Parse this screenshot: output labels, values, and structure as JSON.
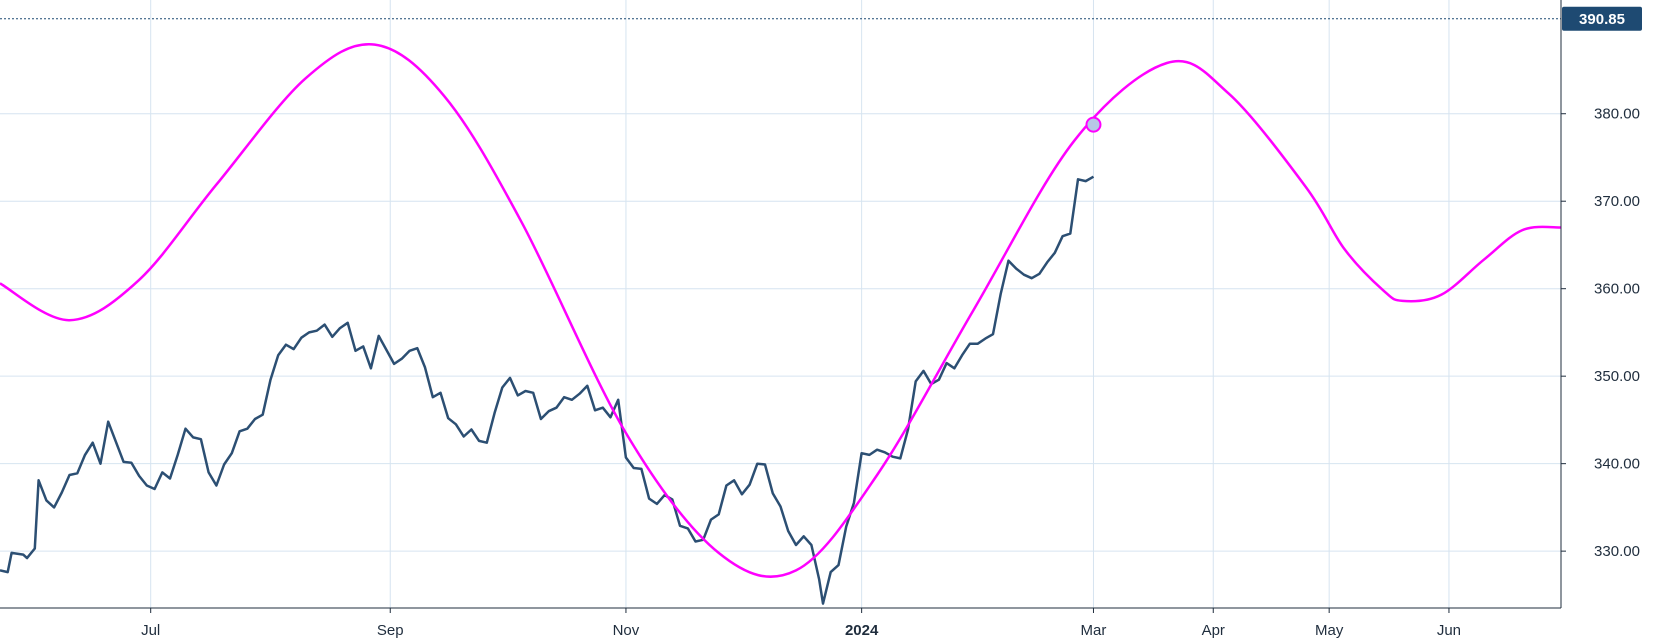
{
  "chart_data": {
    "type": "line",
    "ylim": [
      323.5,
      393
    ],
    "x_range": [
      "2023-05-23",
      "2024-06-30"
    ],
    "y_ticks": [
      "330.00",
      "340.00",
      "350.00",
      "360.00",
      "370.00",
      "380.00"
    ],
    "x_ticks": [
      {
        "date": "2023-07-01",
        "label": "Jul",
        "bold": false
      },
      {
        "date": "2023-09-01",
        "label": "Sep",
        "bold": false
      },
      {
        "date": "2023-11-01",
        "label": "Nov",
        "bold": false
      },
      {
        "date": "2024-01-01",
        "label": "2024",
        "bold": true
      },
      {
        "date": "2024-03-01",
        "label": "Mar",
        "bold": false
      },
      {
        "date": "2024-04-01",
        "label": "Apr",
        "bold": false
      },
      {
        "date": "2024-05-01",
        "label": "May",
        "bold": false
      },
      {
        "date": "2024-06-01",
        "label": "Jun",
        "bold": false
      }
    ],
    "grid": true,
    "last_price": {
      "value": 390.85,
      "label": "390.85",
      "color": "#1e4a72"
    },
    "series": [
      {
        "color": "#2c4f73",
        "points": [
          [
            "2023-05-23",
            327.8
          ],
          [
            "2023-05-25",
            327.6
          ],
          [
            "2023-05-26",
            329.8
          ],
          [
            "2023-05-29",
            329.6
          ],
          [
            "2023-05-30",
            329.2
          ],
          [
            "2023-06-01",
            330.3
          ],
          [
            "2023-06-02",
            338.1
          ],
          [
            "2023-06-04",
            335.8
          ],
          [
            "2023-06-06",
            335.0
          ],
          [
            "2023-06-08",
            336.7
          ],
          [
            "2023-06-10",
            338.7
          ],
          [
            "2023-06-12",
            338.9
          ],
          [
            "2023-06-14",
            341.0
          ],
          [
            "2023-06-16",
            342.4
          ],
          [
            "2023-06-18",
            340.0
          ],
          [
            "2023-06-20",
            344.8
          ],
          [
            "2023-06-22",
            342.5
          ],
          [
            "2023-06-24",
            340.2
          ],
          [
            "2023-06-26",
            340.1
          ],
          [
            "2023-06-28",
            338.6
          ],
          [
            "2023-06-30",
            337.5
          ],
          [
            "2023-07-02",
            337.1
          ],
          [
            "2023-07-04",
            339.0
          ],
          [
            "2023-07-06",
            338.3
          ],
          [
            "2023-07-08",
            341.0
          ],
          [
            "2023-07-10",
            344.0
          ],
          [
            "2023-07-12",
            343.0
          ],
          [
            "2023-07-14",
            342.8
          ],
          [
            "2023-07-16",
            339.0
          ],
          [
            "2023-07-18",
            337.5
          ],
          [
            "2023-07-20",
            339.9
          ],
          [
            "2023-07-22",
            341.2
          ],
          [
            "2023-07-24",
            343.7
          ],
          [
            "2023-07-26",
            344.0
          ],
          [
            "2023-07-28",
            345.1
          ],
          [
            "2023-07-30",
            345.6
          ],
          [
            "2023-08-01",
            349.6
          ],
          [
            "2023-08-03",
            352.4
          ],
          [
            "2023-08-05",
            353.6
          ],
          [
            "2023-08-07",
            353.1
          ],
          [
            "2023-08-09",
            354.4
          ],
          [
            "2023-08-11",
            355.0
          ],
          [
            "2023-08-13",
            355.2
          ],
          [
            "2023-08-15",
            355.9
          ],
          [
            "2023-08-17",
            354.5
          ],
          [
            "2023-08-19",
            355.5
          ],
          [
            "2023-08-21",
            356.1
          ],
          [
            "2023-08-23",
            352.9
          ],
          [
            "2023-08-25",
            353.4
          ],
          [
            "2023-08-27",
            350.9
          ],
          [
            "2023-08-29",
            354.6
          ],
          [
            "2023-08-31",
            353.0
          ],
          [
            "2023-09-02",
            351.4
          ],
          [
            "2023-09-04",
            352.0
          ],
          [
            "2023-09-06",
            352.9
          ],
          [
            "2023-09-08",
            353.2
          ],
          [
            "2023-09-10",
            351.0
          ],
          [
            "2023-09-12",
            347.6
          ],
          [
            "2023-09-14",
            348.1
          ],
          [
            "2023-09-16",
            345.2
          ],
          [
            "2023-09-18",
            344.5
          ],
          [
            "2023-09-20",
            343.1
          ],
          [
            "2023-09-22",
            343.9
          ],
          [
            "2023-09-24",
            342.6
          ],
          [
            "2023-09-26",
            342.4
          ],
          [
            "2023-09-28",
            345.8
          ],
          [
            "2023-09-30",
            348.7
          ],
          [
            "2023-10-02",
            349.8
          ],
          [
            "2023-10-04",
            347.8
          ],
          [
            "2023-10-06",
            348.3
          ],
          [
            "2023-10-08",
            348.1
          ],
          [
            "2023-10-10",
            345.1
          ],
          [
            "2023-10-12",
            346.0
          ],
          [
            "2023-10-14",
            346.4
          ],
          [
            "2023-10-16",
            347.6
          ],
          [
            "2023-10-18",
            347.3
          ],
          [
            "2023-10-20",
            348.0
          ],
          [
            "2023-10-22",
            348.9
          ],
          [
            "2023-10-24",
            346.1
          ],
          [
            "2023-10-26",
            346.4
          ],
          [
            "2023-10-28",
            345.3
          ],
          [
            "2023-10-30",
            347.3
          ],
          [
            "2023-11-01",
            340.7
          ],
          [
            "2023-11-03",
            339.5
          ],
          [
            "2023-11-05",
            339.4
          ],
          [
            "2023-11-07",
            336.0
          ],
          [
            "2023-11-09",
            335.4
          ],
          [
            "2023-11-11",
            336.4
          ],
          [
            "2023-11-13",
            335.9
          ],
          [
            "2023-11-15",
            332.9
          ],
          [
            "2023-11-17",
            332.6
          ],
          [
            "2023-11-19",
            331.1
          ],
          [
            "2023-11-21",
            331.3
          ],
          [
            "2023-11-23",
            333.6
          ],
          [
            "2023-11-25",
            334.2
          ],
          [
            "2023-11-27",
            337.5
          ],
          [
            "2023-11-29",
            338.1
          ],
          [
            "2023-12-01",
            336.5
          ],
          [
            "2023-12-03",
            337.6
          ],
          [
            "2023-12-05",
            340.0
          ],
          [
            "2023-12-07",
            339.9
          ],
          [
            "2023-12-09",
            336.6
          ],
          [
            "2023-12-11",
            335.1
          ],
          [
            "2023-12-13",
            332.3
          ],
          [
            "2023-12-15",
            330.7
          ],
          [
            "2023-12-17",
            331.7
          ],
          [
            "2023-12-19",
            330.7
          ],
          [
            "2023-12-21",
            326.8
          ],
          [
            "2023-12-22",
            324.0
          ],
          [
            "2023-12-24",
            327.6
          ],
          [
            "2023-12-26",
            328.4
          ],
          [
            "2023-12-28",
            332.8
          ],
          [
            "2023-12-30",
            335.5
          ],
          [
            "2024-01-01",
            341.2
          ],
          [
            "2024-01-03",
            341.0
          ],
          [
            "2024-01-05",
            341.6
          ],
          [
            "2024-01-07",
            341.3
          ],
          [
            "2024-01-09",
            340.8
          ],
          [
            "2024-01-11",
            340.6
          ],
          [
            "2024-01-13",
            343.9
          ],
          [
            "2024-01-15",
            349.4
          ],
          [
            "2024-01-17",
            350.6
          ],
          [
            "2024-01-19",
            349.1
          ],
          [
            "2024-01-21",
            349.6
          ],
          [
            "2024-01-23",
            351.5
          ],
          [
            "2024-01-25",
            350.9
          ],
          [
            "2024-01-27",
            352.4
          ],
          [
            "2024-01-29",
            353.7
          ],
          [
            "2024-01-31",
            353.7
          ],
          [
            "2024-02-02",
            354.3
          ],
          [
            "2024-02-04",
            354.8
          ],
          [
            "2024-02-06",
            359.4
          ],
          [
            "2024-02-08",
            363.2
          ],
          [
            "2024-02-10",
            362.3
          ],
          [
            "2024-02-12",
            361.6
          ],
          [
            "2024-02-14",
            361.2
          ],
          [
            "2024-02-16",
            361.7
          ],
          [
            "2024-02-18",
            363.0
          ],
          [
            "2024-02-20",
            364.1
          ],
          [
            "2024-02-22",
            366.0
          ],
          [
            "2024-02-24",
            366.3
          ],
          [
            "2024-02-26",
            372.5
          ],
          [
            "2024-02-28",
            372.3
          ],
          [
            "2024-03-01",
            372.8
          ]
        ]
      },
      {
        "color": "#ff00ff",
        "points": [
          [
            "2023-05-23",
            360.6
          ],
          [
            "2023-06-10",
            356.4
          ],
          [
            "2023-06-28",
            361.0
          ],
          [
            "2023-07-18",
            371.9
          ],
          [
            "2023-08-10",
            384.0
          ],
          [
            "2023-08-28",
            387.9
          ],
          [
            "2023-09-15",
            382.0
          ],
          [
            "2023-10-05",
            367.6
          ],
          [
            "2023-11-01",
            343.5
          ],
          [
            "2023-11-25",
            329.8
          ],
          [
            "2023-12-15",
            327.8
          ],
          [
            "2024-01-05",
            338.7
          ],
          [
            "2024-01-30",
            357.6
          ],
          [
            "2024-02-25",
            376.9
          ],
          [
            "2024-03-20",
            385.8
          ],
          [
            "2024-04-05",
            382.3
          ],
          [
            "2024-04-25",
            371.6
          ],
          [
            "2024-05-05",
            364.5
          ],
          [
            "2024-05-15",
            359.8
          ],
          [
            "2024-05-20",
            358.6
          ],
          [
            "2024-05-30",
            359.3
          ],
          [
            "2024-06-10",
            363.3
          ],
          [
            "2024-06-20",
            366.7
          ],
          [
            "2024-06-30",
            367.0
          ]
        ]
      }
    ]
  }
}
